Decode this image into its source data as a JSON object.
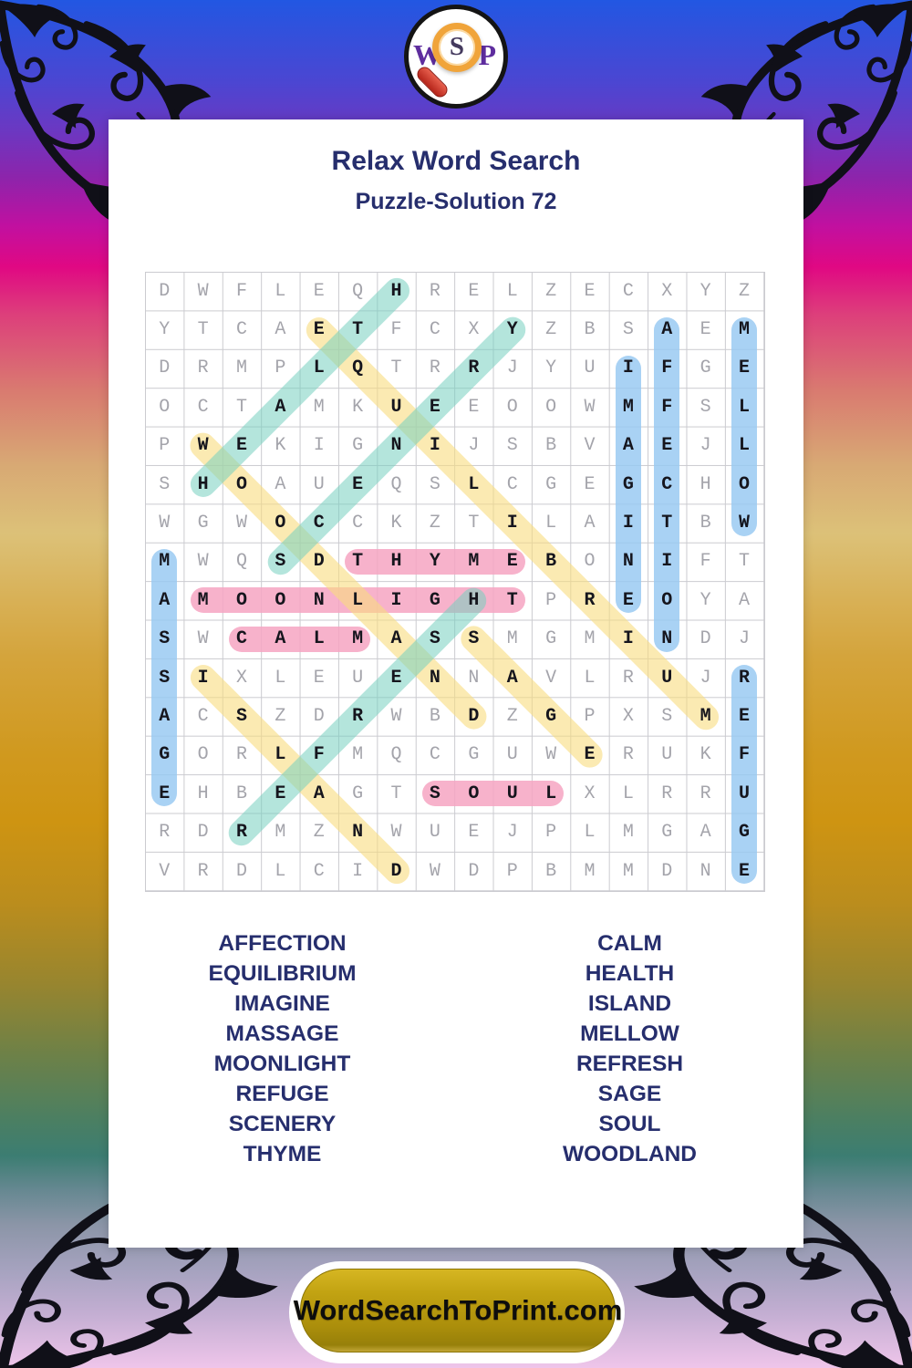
{
  "logo": {
    "initials": [
      "W",
      "S",
      "P"
    ],
    "icon": "magnifier-icon"
  },
  "header": {
    "title": "Relax Word Search",
    "subtitle": "Puzzle-Solution 72"
  },
  "colors": {
    "title_text": "#262e6d",
    "highlight_pink": "rgba(246,164,194,0.85)",
    "highlight_blue": "rgba(150,200,241,0.82)",
    "highlight_yellow": "rgba(248,220,126,0.60)",
    "highlight_teal": "rgba(118,208,192,0.55)",
    "button_gold": "#ab8e0b",
    "background_top": "#2257e2",
    "background_bottom": "#efc5ea"
  },
  "grid": {
    "size": 16,
    "rows": [
      "DWFLEQHRELZECXYZ",
      "YTCAETFCXYZBSAEM",
      "DRMPLQTRRJYUIFGE",
      "OCTAMKUEEOOWMFSL",
      "PWEKIGNIJSBVAEJL",
      "SHOAUEQSLCGEGCHO",
      "WGWOCCKZTILAITBW",
      "MWQSDTHYMEBONIFT",
      "AMOONLIGHTPREOYA",
      "SWCALMASSMGMINDJ",
      "SIXLEUENNAVLRUJR",
      "ACSZDRWBDZGPXSME",
      "GORLFMQCGUWERUKF",
      "EHBEAGTSOULXLRRU",
      "RDRMZNWUEJPLMGAG",
      "VRDLCIDWDPBMMDNE"
    ]
  },
  "solutions": [
    {
      "word": "THYME",
      "row": 8,
      "col": 6,
      "dir": "h",
      "len": 5,
      "color": "pink"
    },
    {
      "word": "MOONLIGHT",
      "row": 9,
      "col": 2,
      "dir": "h",
      "len": 9,
      "color": "pink"
    },
    {
      "word": "CALM",
      "row": 10,
      "col": 3,
      "dir": "h",
      "len": 4,
      "color": "pink"
    },
    {
      "word": "SOUL",
      "row": 14,
      "col": 8,
      "dir": "h",
      "len": 4,
      "color": "pink"
    },
    {
      "word": "MELLOW",
      "row": 2,
      "col": 16,
      "dir": "v",
      "len": 6,
      "color": "blue"
    },
    {
      "word": "AFFECTION",
      "row": 2,
      "col": 14,
      "dir": "v",
      "len": 9,
      "color": "blue"
    },
    {
      "word": "IMAGINE",
      "row": 3,
      "col": 13,
      "dir": "v",
      "len": 7,
      "color": "blue"
    },
    {
      "word": "MASSAGE",
      "row": 8,
      "col": 1,
      "dir": "v",
      "len": 7,
      "color": "blue"
    },
    {
      "word": "REFUGE",
      "row": 11,
      "col": 16,
      "dir": "v",
      "len": 6,
      "color": "blue"
    },
    {
      "word": "EQUILIBRIUM",
      "row": 2,
      "col": 5,
      "dir": "diag-down",
      "len": 11,
      "color": "yellow"
    },
    {
      "word": "WOODLAND",
      "row": 5,
      "col": 2,
      "dir": "diag-down",
      "len": 8,
      "color": "yellow"
    },
    {
      "word": "ISLAND",
      "row": 11,
      "col": 2,
      "dir": "diag-down",
      "len": 6,
      "color": "yellow"
    },
    {
      "word": "SAGE",
      "row": 10,
      "col": 9,
      "dir": "diag-down",
      "len": 4,
      "color": "yellow"
    },
    {
      "word": "HEALTH",
      "row": 6,
      "col": 2,
      "dir": "diag-up",
      "len": 6,
      "color": "teal"
    },
    {
      "word": "SCENERY",
      "row": 8,
      "col": 4,
      "dir": "diag-up",
      "len": 7,
      "color": "teal"
    },
    {
      "word": "REFRESH",
      "row": 15,
      "col": 3,
      "dir": "diag-up",
      "len": 7,
      "color": "teal"
    }
  ],
  "word_list": {
    "left_column": [
      "AFFECTION",
      "EQUILIBRIUM",
      "IMAGINE",
      "MASSAGE",
      "MOONLIGHT",
      "REFUGE",
      "SCENERY",
      "THYME"
    ],
    "right_column": [
      "CALM",
      "HEALTH",
      "ISLAND",
      "MELLOW",
      "REFRESH",
      "SAGE",
      "SOUL",
      "WOODLAND"
    ]
  },
  "footer": {
    "button_label": "WordSearchToPrint.com"
  }
}
